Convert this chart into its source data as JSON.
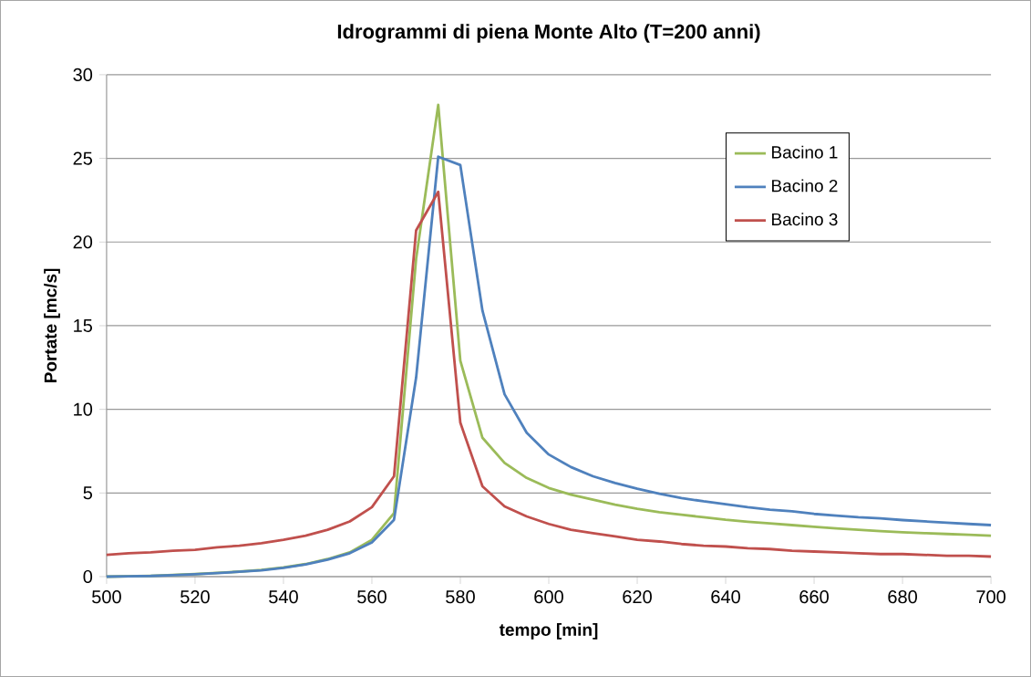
{
  "chart_data": {
    "type": "line",
    "title": "Idrogrammi di piena Monte Alto (T=200 anni)",
    "xlabel": "tempo [min]",
    "ylabel": "Portate [mc/s]",
    "x": [
      500,
      505,
      510,
      515,
      520,
      525,
      530,
      535,
      540,
      545,
      550,
      555,
      560,
      565,
      570,
      575,
      580,
      585,
      590,
      595,
      600,
      605,
      610,
      615,
      620,
      625,
      630,
      635,
      640,
      645,
      650,
      655,
      660,
      665,
      670,
      675,
      680,
      685,
      690,
      695,
      700
    ],
    "series": [
      {
        "name": "Bacino 1",
        "color": "#9bbb59",
        "values": [
          0,
          null,
          0.05,
          0.1,
          0.15,
          0.22,
          0.3,
          0.4,
          0.55,
          0.75,
          1.05,
          1.45,
          2.2,
          3.8,
          19.0,
          28.2,
          12.9,
          8.3,
          6.8,
          5.9,
          5.3,
          4.9,
          4.6,
          4.3,
          4.05,
          3.85,
          3.7,
          3.55,
          3.4,
          3.28,
          3.18,
          3.08,
          2.98,
          2.88,
          2.8,
          2.72,
          2.65,
          2.6,
          2.55,
          2.5,
          2.45
        ]
      },
      {
        "name": "Bacino 2",
        "color": "#4f81bd",
        "values": [
          0,
          0.02,
          0.04,
          0.09,
          0.14,
          0.21,
          0.29,
          0.38,
          0.53,
          0.73,
          1.02,
          1.4,
          2.05,
          3.4,
          11.9,
          25.1,
          24.6,
          15.9,
          10.9,
          8.6,
          7.3,
          6.55,
          6.0,
          5.6,
          5.25,
          4.95,
          4.7,
          4.5,
          4.33,
          4.15,
          4.0,
          3.9,
          3.75,
          3.65,
          3.55,
          3.48,
          3.38,
          3.3,
          3.22,
          3.15,
          3.08
        ]
      },
      {
        "name": "Bacino 3",
        "color": "#c0504d",
        "values": [
          1.3,
          1.4,
          1.45,
          1.55,
          1.6,
          1.75,
          1.85,
          2.0,
          2.2,
          2.45,
          2.8,
          3.3,
          4.15,
          6.0,
          20.7,
          23.0,
          9.2,
          5.4,
          4.2,
          3.6,
          3.15,
          2.8,
          2.6,
          2.4,
          2.2,
          2.1,
          1.95,
          1.85,
          1.8,
          1.7,
          1.65,
          1.55,
          1.5,
          1.45,
          1.4,
          1.35,
          1.35,
          1.3,
          1.25,
          1.25,
          1.2
        ]
      }
    ],
    "xlim": [
      500,
      700
    ],
    "ylim": [
      0,
      30
    ],
    "xticks": [
      500,
      520,
      540,
      560,
      580,
      600,
      620,
      640,
      660,
      680,
      700
    ],
    "yticks": [
      0,
      5,
      10,
      15,
      20,
      25,
      30
    ],
    "grid": "y",
    "legend": "top right",
    "marker": "none",
    "line_style": "solid"
  }
}
